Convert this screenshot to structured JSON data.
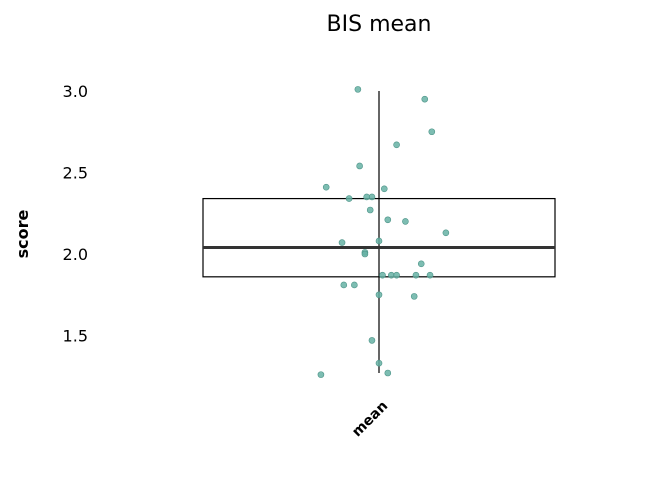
{
  "chart_data": {
    "type": "box",
    "title": "BIS mean",
    "xlabel": "",
    "ylabel": "score",
    "categories": [
      "mean"
    ],
    "ylim": [
      1.2,
      3.05
    ],
    "yticks": [
      1.5,
      2.0,
      2.5,
      3.0
    ],
    "ytick_labels": [
      "1.5",
      "2.0",
      "2.5",
      "3.0"
    ],
    "box": {
      "whisker_low": 1.27,
      "q1": 1.86,
      "median": 2.04,
      "q3": 2.34,
      "whisker_high": 3.0
    },
    "points": [
      {
        "x": -0.06,
        "y": 3.01
      },
      {
        "x": 0.13,
        "y": 2.95
      },
      {
        "x": 0.15,
        "y": 2.75
      },
      {
        "x": 0.05,
        "y": 2.67
      },
      {
        "x": -0.055,
        "y": 2.54
      },
      {
        "x": -0.15,
        "y": 2.41
      },
      {
        "x": 0.015,
        "y": 2.4
      },
      {
        "x": -0.02,
        "y": 2.35
      },
      {
        "x": -0.035,
        "y": 2.35
      },
      {
        "x": -0.085,
        "y": 2.34
      },
      {
        "x": -0.025,
        "y": 2.27
      },
      {
        "x": 0.025,
        "y": 2.21
      },
      {
        "x": 0.075,
        "y": 2.2
      },
      {
        "x": 0.19,
        "y": 2.13
      },
      {
        "x": 0.0,
        "y": 2.08
      },
      {
        "x": -0.105,
        "y": 2.07
      },
      {
        "x": -0.04,
        "y": 2.01
      },
      {
        "x": -0.04,
        "y": 2.0
      },
      {
        "x": 0.12,
        "y": 1.94
      },
      {
        "x": 0.01,
        "y": 1.87
      },
      {
        "x": 0.035,
        "y": 1.87
      },
      {
        "x": 0.05,
        "y": 1.87
      },
      {
        "x": 0.105,
        "y": 1.87
      },
      {
        "x": 0.145,
        "y": 1.87
      },
      {
        "x": -0.1,
        "y": 1.81
      },
      {
        "x": -0.07,
        "y": 1.81
      },
      {
        "x": 0.0,
        "y": 1.75
      },
      {
        "x": 0.1,
        "y": 1.74
      },
      {
        "x": -0.02,
        "y": 1.47
      },
      {
        "x": 0.0,
        "y": 1.33
      },
      {
        "x": -0.165,
        "y": 1.26
      },
      {
        "x": 0.025,
        "y": 1.27
      }
    ],
    "point_color": "#66b2a4",
    "point_edge_color": "#4d9488",
    "box_color": "#000000",
    "grid": false
  }
}
